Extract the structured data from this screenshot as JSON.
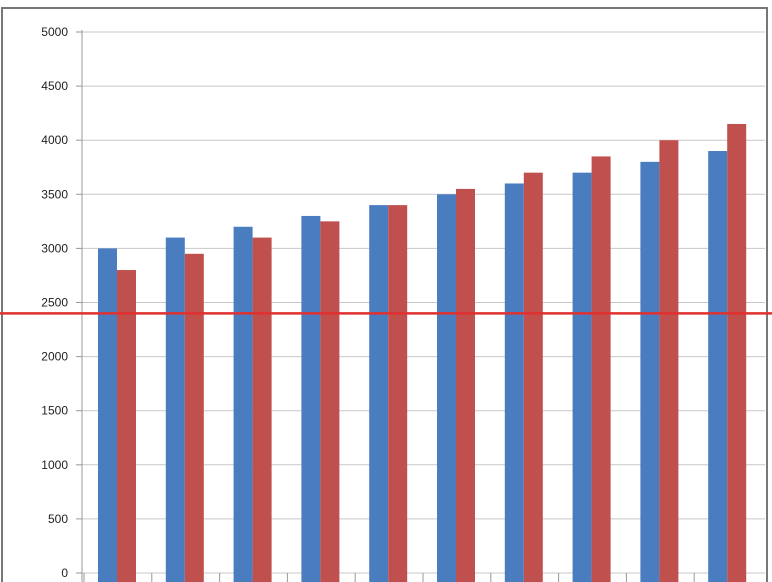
{
  "chart_data": {
    "type": "bar",
    "title": "",
    "xlabel": "",
    "ylabel": "",
    "categories": [
      "",
      "",
      "",
      "",
      "",
      "",
      "",
      "",
      "",
      ""
    ],
    "series": [
      {
        "values": [
          3000,
          3100,
          3200,
          3300,
          3400,
          3500,
          3600,
          3700,
          3800,
          3900
        ]
      },
      {
        "values": [
          2800,
          2950,
          3100,
          3250,
          3400,
          3550,
          3700,
          3850,
          4000,
          4150
        ]
      }
    ],
    "ylim": [
      0,
      5000
    ],
    "yticks": [
      "0",
      "500",
      "1000",
      "1500",
      "2000",
      "2500",
      "3000",
      "3500",
      "4000",
      "4500",
      "5000"
    ],
    "ytick_values": [
      0,
      500,
      1000,
      1500,
      2000,
      2500,
      3000,
      3500,
      4000,
      4500,
      5000
    ],
    "grid": true,
    "reference_line": {
      "y": 2400,
      "color": "#e03030"
    },
    "colors": {
      "series": [
        "#4a7cc0",
        "#c0504d"
      ],
      "grid": "#c8c8c8",
      "frame": "#777777"
    }
  }
}
